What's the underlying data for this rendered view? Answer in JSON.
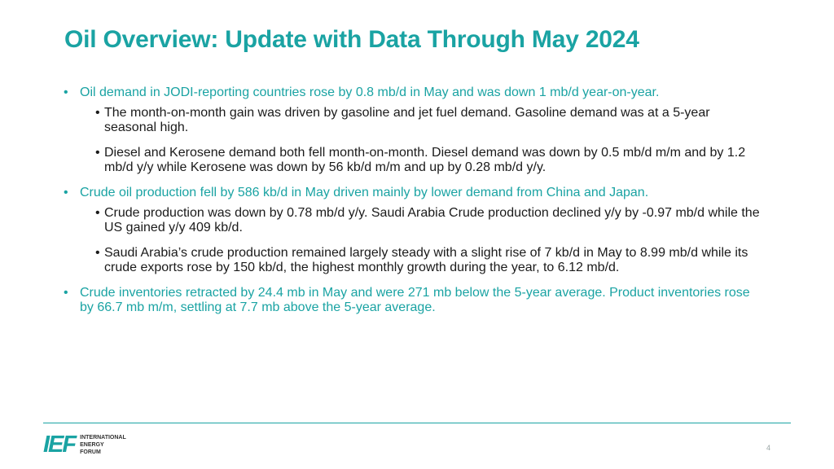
{
  "slide": {
    "title": "Oil Overview: Update with Data Through May 2024",
    "bullet_symbol": "•",
    "bullets": [
      {
        "text": "Oil demand in JODI-reporting countries rose by 0.8 mb/d in May and was down 1 mb/d year-on-year."
      },
      {
        "text": "The month-on-month gain was driven by gasoline and jet fuel demand. Gasoline demand was at a 5-year seasonal high."
      },
      {
        "text": "Diesel and Kerosene demand both fell month-on-month. Diesel demand was down by 0.5 mb/d m/m and by 1.2 mb/d y/y while Kerosene was down by 56 kb/d m/m and up by 0.28 mb/d y/y."
      },
      {
        "text": "Crude oil production fell by 586 kb/d in May driven mainly by lower demand from China and Japan."
      },
      {
        "text": "Crude production was down by 0.78 mb/d y/y. Saudi Arabia Crude production declined y/y by -0.97 mb/d while the US gained y/y 409 kb/d."
      },
      {
        "text": "Saudi Arabia’s crude production remained largely steady with a slight rise of 7 kb/d in May to 8.99 mb/d while its crude exports rose by 150 kb/d, the highest monthly growth during the year, to 6.12 mb/d."
      },
      {
        "text": "Crude inventories retracted by 24.4 mb in May and were 271 mb below the 5-year average. Product inventories rose by 66.7 mb m/m, settling at 7.7 mb above the 5-year average."
      }
    ]
  },
  "footer": {
    "logo_mark": "IEF",
    "logo_lines": [
      "INTERNATIONAL",
      "ENERGY",
      "FORUM"
    ],
    "page_number": "4"
  },
  "colors": {
    "accent": "#1aa3a3",
    "body_text": "#1a1a1a"
  }
}
